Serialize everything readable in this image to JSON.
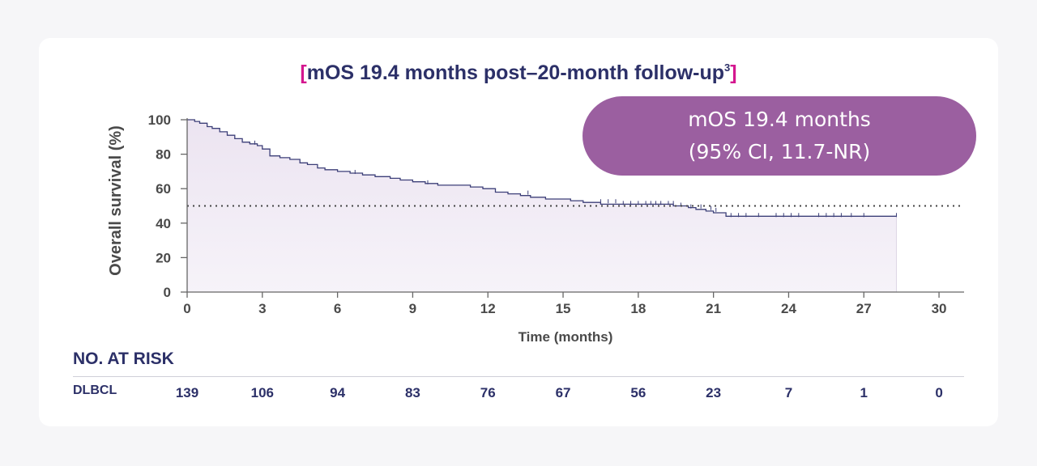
{
  "title": {
    "open_bracket": "[",
    "text": "mOS 19.4 months post–20-month follow-up",
    "superscript": "3",
    "close_bracket": "]"
  },
  "badge": {
    "line1": "mOS 19.4 months",
    "line2": "(95% CI, 11.7-NR)"
  },
  "chart_data": {
    "type": "line",
    "title": "mOS 19.4 months post–20-month follow-up",
    "xlabel": "Time (months)",
    "ylabel": "Overall survival (%)",
    "xlim": [
      0,
      31
    ],
    "ylim": [
      0,
      100
    ],
    "x_ticks": [
      0,
      3,
      6,
      9,
      12,
      15,
      18,
      21,
      24,
      27,
      30
    ],
    "y_ticks": [
      0,
      20,
      40,
      60,
      80,
      100
    ],
    "reference_line": {
      "y": 50,
      "style": "dotted"
    },
    "series": [
      {
        "curve": "step",
        "x": [
          0,
          0.3,
          0.5,
          0.8,
          1.0,
          1.3,
          1.6,
          1.9,
          2.2,
          2.5,
          2.8,
          3.0,
          3.3,
          3.7,
          4.1,
          4.5,
          4.8,
          5.2,
          5.5,
          6.0,
          6.5,
          7.0,
          7.5,
          8.1,
          8.5,
          9.0,
          9.5,
          10.0,
          11.3,
          11.8,
          12.3,
          12.8,
          13.3,
          13.7,
          14.3,
          14.8,
          15.3,
          15.8,
          16.5,
          17.5,
          18.3,
          19.0,
          19.4,
          20.0,
          20.3,
          20.7,
          21.0,
          21.5,
          28.3
        ],
        "y": [
          100,
          99,
          98,
          96,
          95,
          93,
          91,
          89,
          87,
          86,
          85,
          83,
          79,
          78,
          77,
          75,
          74,
          72,
          71,
          70,
          69,
          68,
          67,
          66,
          65,
          64,
          63,
          62,
          61,
          60,
          58,
          57,
          56,
          55,
          54,
          54,
          53,
          52,
          51,
          51,
          51,
          51,
          50,
          49,
          48,
          47,
          46,
          44,
          44
        ]
      }
    ],
    "censor_marks": [
      {
        "x": 2.7,
        "y": 86
      },
      {
        "x": 6.7,
        "y": 69
      },
      {
        "x": 9.6,
        "y": 63
      },
      {
        "x": 13.6,
        "y": 57
      },
      {
        "x": 16.5,
        "y": 52
      },
      {
        "x": 16.8,
        "y": 52
      },
      {
        "x": 17.1,
        "y": 52
      },
      {
        "x": 17.4,
        "y": 51
      },
      {
        "x": 17.7,
        "y": 51
      },
      {
        "x": 18.0,
        "y": 51
      },
      {
        "x": 18.3,
        "y": 51
      },
      {
        "x": 18.5,
        "y": 51
      },
      {
        "x": 18.7,
        "y": 51
      },
      {
        "x": 18.9,
        "y": 51
      },
      {
        "x": 19.2,
        "y": 51
      },
      {
        "x": 19.4,
        "y": 51
      },
      {
        "x": 19.7,
        "y": 50
      },
      {
        "x": 20.1,
        "y": 49
      },
      {
        "x": 20.5,
        "y": 49
      },
      {
        "x": 20.9,
        "y": 48
      },
      {
        "x": 21.1,
        "y": 47
      },
      {
        "x": 21.7,
        "y": 44
      },
      {
        "x": 22.0,
        "y": 44
      },
      {
        "x": 22.3,
        "y": 44
      },
      {
        "x": 22.8,
        "y": 44
      },
      {
        "x": 23.5,
        "y": 44
      },
      {
        "x": 23.8,
        "y": 44
      },
      {
        "x": 24.1,
        "y": 44
      },
      {
        "x": 24.4,
        "y": 44
      },
      {
        "x": 25.2,
        "y": 44
      },
      {
        "x": 25.5,
        "y": 44
      },
      {
        "x": 25.8,
        "y": 44
      },
      {
        "x": 26.1,
        "y": 44
      },
      {
        "x": 26.5,
        "y": 44
      },
      {
        "x": 27.0,
        "y": 44
      },
      {
        "x": 28.3,
        "y": 44
      }
    ],
    "legend": "none",
    "grid": false
  },
  "at_risk": {
    "heading": "NO. AT RISK",
    "row_label": "DLBCL",
    "times": [
      0,
      3,
      6,
      9,
      12,
      15,
      18,
      21,
      24,
      27,
      30
    ],
    "values": [
      "139",
      "106",
      "94",
      "83",
      "76",
      "67",
      "56",
      "23",
      "7",
      "1",
      "0"
    ]
  },
  "colors": {
    "navy": "#2c3068",
    "magenta": "#d4178f",
    "badge": "#9b5fa0",
    "curve": "#3c3f78",
    "fill": "#ece4f1",
    "axis": "#666666"
  }
}
